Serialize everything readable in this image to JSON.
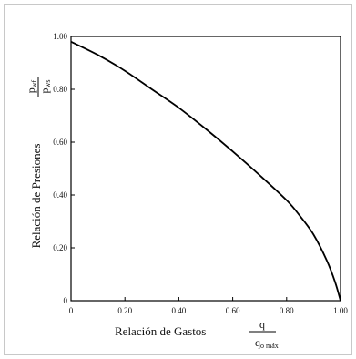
{
  "chart_data": {
    "type": "line",
    "title": "",
    "xlabel": "Relación  de Gastos",
    "xlabel_fraction": {
      "numerator": "q",
      "denominator": "q",
      "denominator_sub": "o máx"
    },
    "ylabel": "Relación de Presiones",
    "ylabel_fraction": {
      "numerator": "p",
      "numerator_sub": "wf",
      "denominator": "p",
      "denominator_sub": "ws"
    },
    "xlim": [
      0,
      1
    ],
    "ylim": [
      0,
      1
    ],
    "x_ticks": [
      {
        "value": 0,
        "label": "0"
      },
      {
        "value": 0.2,
        "label": "0.20"
      },
      {
        "value": 0.4,
        "label": "0.40"
      },
      {
        "value": 0.6,
        "label": "0.60"
      },
      {
        "value": 0.8,
        "label": "0.80"
      },
      {
        "value": 1.0,
        "label": "1.00"
      }
    ],
    "y_ticks": [
      {
        "value": 0,
        "label": "0"
      },
      {
        "value": 0.2,
        "label": "0.20"
      },
      {
        "value": 0.4,
        "label": "0.40"
      },
      {
        "value": 0.6,
        "label": "0.60"
      },
      {
        "value": 0.8,
        "label": "0.80"
      },
      {
        "value": 1.0,
        "label": "1.00"
      }
    ],
    "grid": false,
    "series": [
      {
        "color": "#000000",
        "x": [
          0,
          0.1,
          0.2,
          0.3,
          0.4,
          0.5,
          0.6,
          0.7,
          0.8,
          0.85,
          0.9,
          0.95,
          0.98,
          1.0
        ],
        "y": [
          0.98,
          0.93,
          0.87,
          0.8,
          0.73,
          0.65,
          0.565,
          0.475,
          0.38,
          0.32,
          0.25,
          0.15,
          0.07,
          0
        ]
      }
    ]
  }
}
